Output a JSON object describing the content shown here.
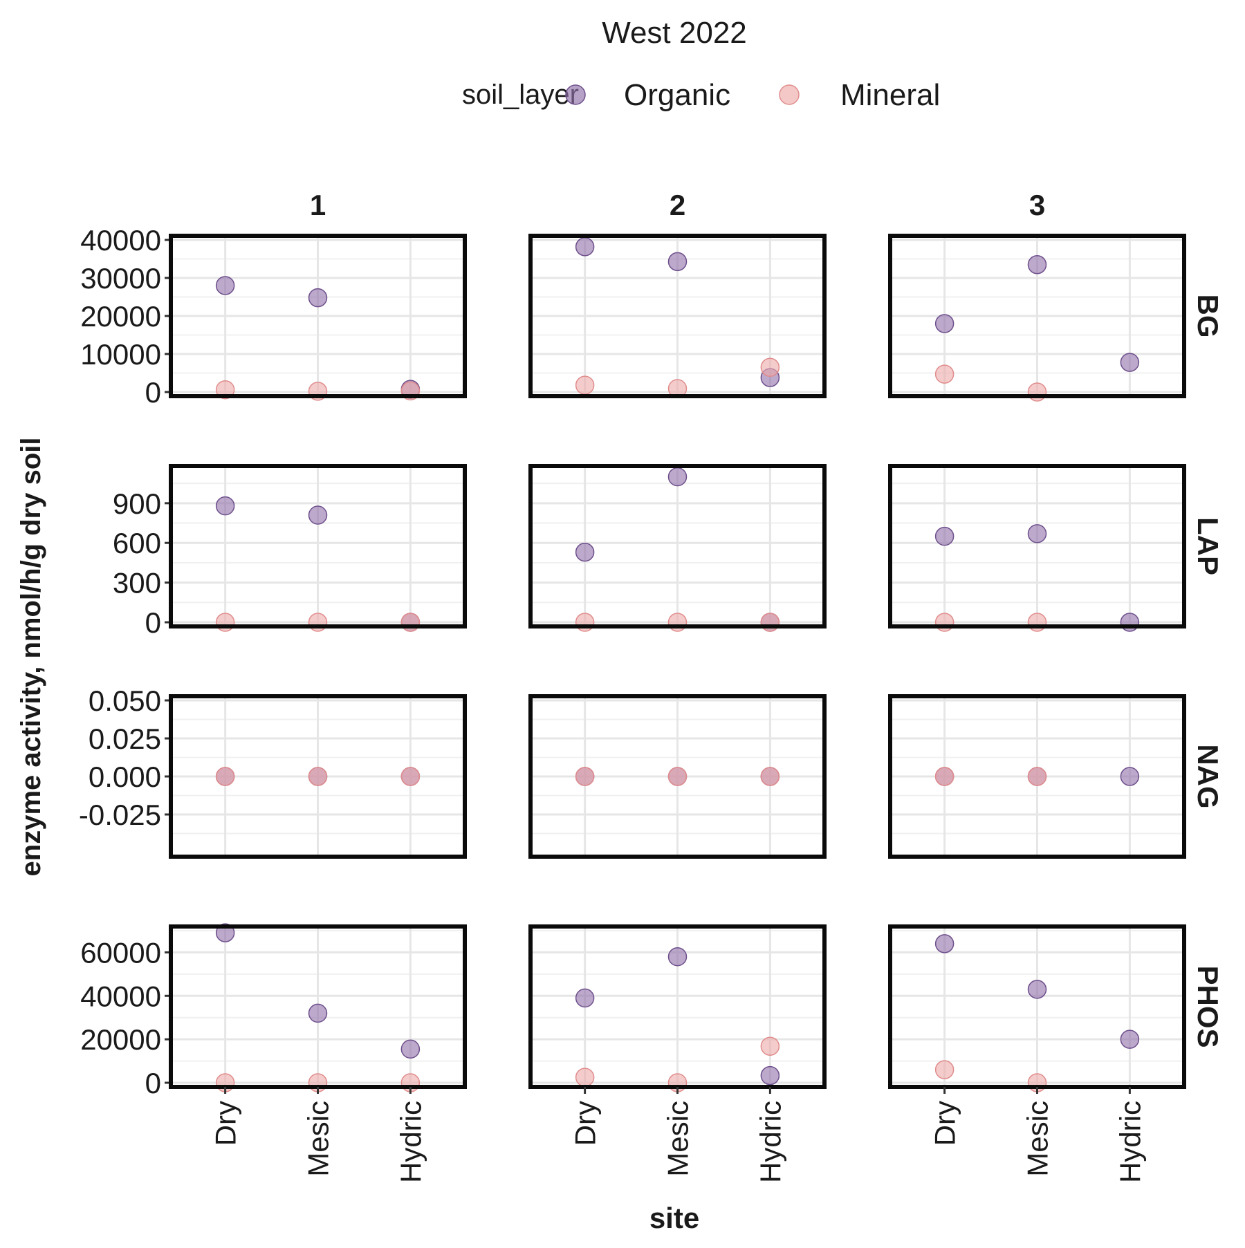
{
  "chart_data": {
    "type": "scatter",
    "title": "West 2022",
    "xlabel": "site",
    "ylabel": "enzyme activity, nmol/h/g dry soil",
    "legend": {
      "title": "soil_layer",
      "placement": "top",
      "entries": [
        {
          "name": "Organic",
          "color": "#8f70a8"
        },
        {
          "name": "Mineral",
          "color": "#efaaaa"
        }
      ]
    },
    "categories": [
      "Dry",
      "Mesic",
      "Hydric"
    ],
    "columns": [
      "1",
      "2",
      "3"
    ],
    "grid": true,
    "panels": [
      {
        "enzyme": "BG",
        "ylim": [
          0,
          40000
        ],
        "yticks": [
          0,
          10000,
          20000,
          30000,
          40000
        ],
        "ytick_labels": [
          "0",
          "10000",
          "20000",
          "30000",
          "40000"
        ],
        "data": {
          "1": {
            "Organic": [
              28000,
              24800,
              700
            ],
            "Mineral": [
              600,
              200,
              300
            ]
          },
          "2": {
            "Organic": [
              38200,
              34300,
              3800
            ],
            "Mineral": [
              1800,
              900,
              6500
            ]
          },
          "3": {
            "Organic": [
              18000,
              33500,
              7800
            ],
            "Mineral": [
              4700,
              0,
              null
            ]
          }
        }
      },
      {
        "enzyme": "LAP",
        "ylim": [
          0,
          1150
        ],
        "yticks": [
          0,
          300,
          600,
          900
        ],
        "ytick_labels": [
          "0",
          "300",
          "600",
          "900"
        ],
        "data": {
          "1": {
            "Organic": [
              880,
              810,
              0
            ],
            "Mineral": [
              0,
              0,
              0
            ]
          },
          "2": {
            "Organic": [
              530,
              1100,
              0
            ],
            "Mineral": [
              0,
              0,
              0
            ]
          },
          "3": {
            "Organic": [
              650,
              670,
              0
            ],
            "Mineral": [
              0,
              0,
              null
            ]
          }
        }
      },
      {
        "enzyme": "NAG",
        "ylim": [
          -0.05,
          0.05
        ],
        "yticks": [
          -0.025,
          0,
          0.025,
          0.05
        ],
        "ytick_labels": [
          "-0.025",
          "0.000",
          "0.025",
          "0.050"
        ],
        "data": {
          "1": {
            "Organic": [
              0,
              0,
              0
            ],
            "Mineral": [
              0,
              0,
              0
            ]
          },
          "2": {
            "Organic": [
              0,
              0,
              0
            ],
            "Mineral": [
              0,
              0,
              0
            ]
          },
          "3": {
            "Organic": [
              0,
              0,
              0
            ],
            "Mineral": [
              0,
              0,
              null
            ]
          }
        }
      },
      {
        "enzyme": "PHOS",
        "ylim": [
          0,
          70000
        ],
        "yticks": [
          0,
          20000,
          40000,
          60000
        ],
        "ytick_labels": [
          "0",
          "20000",
          "40000",
          "60000"
        ],
        "data": {
          "1": {
            "Organic": [
              69000,
              32000,
              15500
            ],
            "Mineral": [
              0,
              0,
              0
            ]
          },
          "2": {
            "Organic": [
              39000,
              58000,
              3300
            ],
            "Mineral": [
              2500,
              0,
              16800
            ]
          },
          "3": {
            "Organic": [
              64000,
              43000,
              20000
            ],
            "Mineral": [
              6000,
              0,
              null
            ]
          }
        }
      }
    ]
  }
}
